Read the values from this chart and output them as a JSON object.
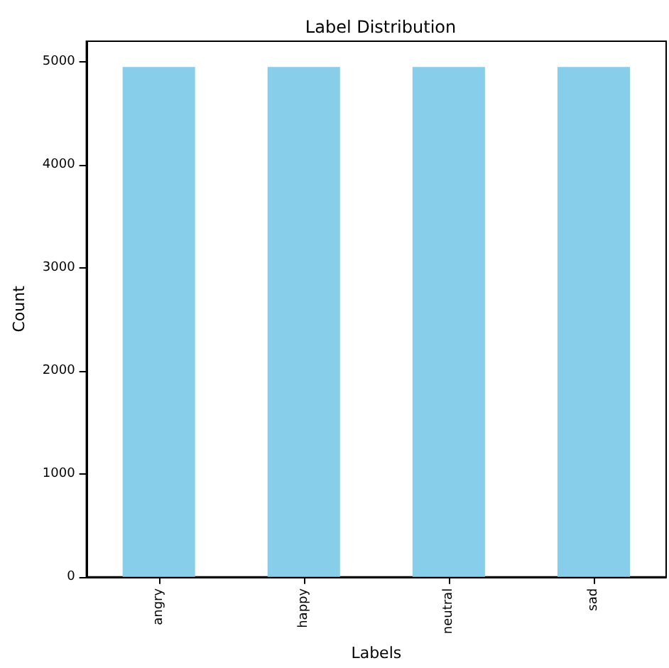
{
  "chart_data": {
    "type": "bar",
    "title": "Label Distribution",
    "xlabel": "Labels",
    "ylabel": "Count",
    "categories": [
      "angry",
      "happy",
      "neutral",
      "sad"
    ],
    "values": [
      4950,
      4950,
      4950,
      4950
    ],
    "color": "#87ceeb",
    "ylim": [
      0,
      5200
    ],
    "yticks": [
      0,
      1000,
      2000,
      3000,
      4000,
      5000
    ],
    "grid": false
  }
}
